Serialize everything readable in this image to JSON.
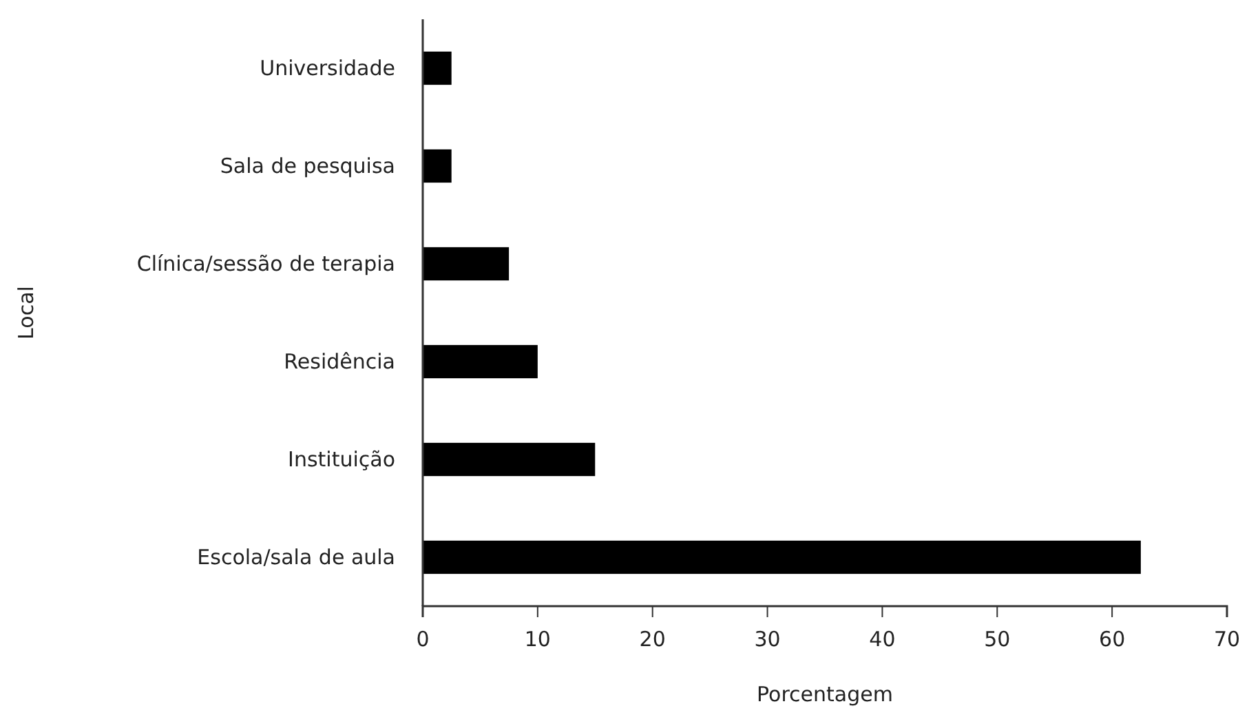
{
  "chart_data": {
    "type": "bar",
    "orientation": "horizontal",
    "xlabel": "Porcentagem",
    "ylabel": "Local",
    "categories": [
      "Universidade",
      "Sala de pesquisa",
      "Clínica/sessão de terapia",
      "Residência",
      "Instituição",
      "Escola/sala de aula"
    ],
    "values": [
      2.5,
      2.5,
      7.5,
      10,
      15,
      62.5
    ],
    "color": "#000000",
    "xlim": [
      0,
      70
    ],
    "xticks": [
      0,
      10,
      20,
      30,
      40,
      50,
      60,
      70
    ],
    "grid": false
  }
}
